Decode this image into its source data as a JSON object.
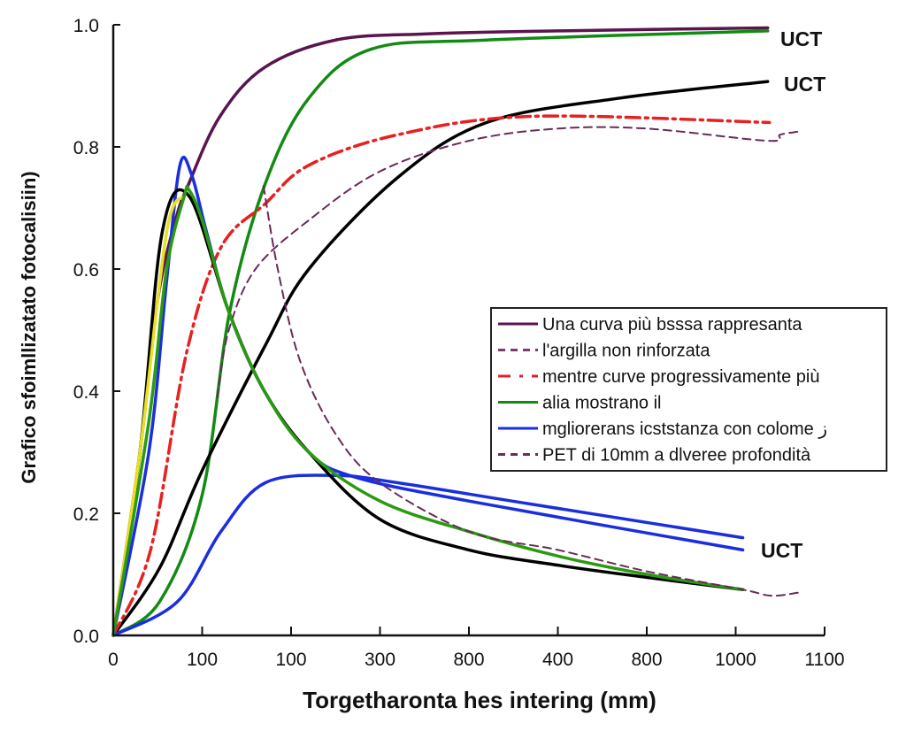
{
  "chart_data": {
    "type": "line",
    "title": "",
    "xlabel": "Torgetharonta hes intering (mm)",
    "ylabel": "Grafico sfoimllizatato fotocalisiin)",
    "x_tick_labels": [
      "0",
      "100",
      "100",
      "300",
      "800",
      "400",
      "800",
      "1000",
      "1100"
    ],
    "x_note_units": "tick index (0-8, evenly spaced ticks)",
    "y_ticks": [
      "0.0",
      "0.2",
      "0.4",
      "0.6",
      "0.8",
      "1.0"
    ],
    "ylim": [
      0,
      1.0
    ],
    "xlim": [
      0,
      8
    ],
    "grid": false,
    "legend_placement": "center-right",
    "legend": [
      {
        "label": "Una curva più bsssa rappresanta",
        "color": "#5a1450",
        "style": "solid"
      },
      {
        "label": "l'argilla non rinforzata",
        "color": "#7a3a6a",
        "style": "dashed"
      },
      {
        "label": "mentre curve progressivamente più",
        "color": "#e0202a",
        "style": "dashdot"
      },
      {
        "label": "alia mostrano il",
        "color": "#138a13",
        "style": "solid"
      },
      {
        "label": "mgliorerans icststanza con colome ز",
        "color": "#1a2ee0",
        "style": "solid"
      },
      {
        "label": "PET di 10mm a dlveree profondità",
        "color": "#6a2a5a",
        "style": "dashed"
      }
    ],
    "end_labels": [
      "UCT",
      "UCT",
      "UCT"
    ],
    "series": [
      {
        "id": "purple-rise",
        "color": "#5a1450",
        "style": "solid",
        "points": [
          [
            0,
            0
          ],
          [
            0.3,
            0.3
          ],
          [
            0.5,
            0.55
          ],
          [
            0.7,
            0.68
          ],
          [
            0.85,
            0.74
          ],
          [
            1.2,
            0.85
          ],
          [
            1.7,
            0.93
          ],
          [
            2.5,
            0.975
          ],
          [
            3.5,
            0.985
          ],
          [
            5,
            0.99
          ],
          [
            7.36,
            0.995
          ]
        ]
      },
      {
        "id": "green-rise",
        "color": "#138a13",
        "style": "solid",
        "points": [
          [
            0,
            0
          ],
          [
            0.52,
            0.055
          ],
          [
            1.0,
            0.23
          ],
          [
            1.31,
            0.53
          ],
          [
            1.71,
            0.74
          ],
          [
            2.2,
            0.88
          ],
          [
            2.9,
            0.96
          ],
          [
            4.2,
            0.975
          ],
          [
            7.36,
            0.99
          ]
        ]
      },
      {
        "id": "black-rise",
        "color": "#000000",
        "style": "solid",
        "points": [
          [
            0,
            0
          ],
          [
            0.52,
            0.11
          ],
          [
            1.0,
            0.27
          ],
          [
            1.71,
            0.475
          ],
          [
            2.2,
            0.6
          ],
          [
            3.2,
            0.75
          ],
          [
            4.2,
            0.84
          ],
          [
            5.7,
            0.88
          ],
          [
            7.36,
            0.907
          ]
        ]
      },
      {
        "id": "red-dashdot",
        "color": "#e82020",
        "style": "dashdot",
        "points": [
          [
            0,
            0
          ],
          [
            0.42,
            0.14
          ],
          [
            0.82,
            0.46
          ],
          [
            1.21,
            0.635
          ],
          [
            1.71,
            0.707
          ],
          [
            2.2,
            0.77
          ],
          [
            3.2,
            0.82
          ],
          [
            4.7,
            0.85
          ],
          [
            7.38,
            0.84
          ]
        ]
      },
      {
        "id": "purple-dashed-rise",
        "color": "#6a2a5a",
        "style": "dashed",
        "points": [
          [
            1.17,
            0.39
          ],
          [
            1.3,
            0.5
          ],
          [
            1.6,
            0.6
          ],
          [
            2.2,
            0.68
          ],
          [
            3,
            0.76
          ],
          [
            4,
            0.81
          ],
          [
            5,
            0.83
          ],
          [
            6,
            0.83
          ],
          [
            7.36,
            0.81
          ],
          [
            7.5,
            0.82
          ],
          [
            7.7,
            0.825
          ]
        ]
      },
      {
        "id": "blue-peak",
        "color": "#1a2ee0",
        "style": "solid",
        "points": [
          [
            0,
            0
          ],
          [
            0.4,
            0.3
          ],
          [
            0.6,
            0.58
          ],
          [
            0.75,
            0.77
          ],
          [
            0.88,
            0.755
          ],
          [
            1.05,
            0.66
          ],
          [
            1.3,
            0.53
          ],
          [
            1.7,
            0.4
          ],
          [
            2.2,
            0.3
          ],
          [
            2.7,
            0.26
          ],
          [
            4,
            0.22
          ],
          [
            7.08,
            0.14
          ]
        ]
      },
      {
        "id": "blue-low",
        "color": "#1a2ee0",
        "style": "solid",
        "points": [
          [
            0,
            0
          ],
          [
            0.72,
            0.055
          ],
          [
            1.21,
            0.17
          ],
          [
            1.71,
            0.25
          ],
          [
            2.5,
            0.262
          ],
          [
            3.2,
            0.25
          ],
          [
            4.7,
            0.215
          ],
          [
            7.08,
            0.16
          ]
        ]
      },
      {
        "id": "black-peak",
        "color": "#000000",
        "style": "solid",
        "points": [
          [
            0,
            0
          ],
          [
            0.3,
            0.3
          ],
          [
            0.55,
            0.66
          ],
          [
            0.85,
            0.72
          ],
          [
            1.3,
            0.53
          ],
          [
            1.7,
            0.4
          ],
          [
            2.2,
            0.3
          ],
          [
            3,
            0.19
          ],
          [
            4,
            0.14
          ],
          [
            5,
            0.115
          ],
          [
            6,
            0.095
          ],
          [
            7.08,
            0.075
          ]
        ]
      },
      {
        "id": "yellow-peak",
        "color": "#e8e020",
        "style": "solid",
        "points": [
          [
            0,
            0
          ],
          [
            0.3,
            0.3
          ],
          [
            0.6,
            0.66
          ],
          [
            0.8,
            0.72
          ]
        ]
      },
      {
        "id": "green-peak",
        "color": "#2a9a10",
        "style": "solid",
        "points": [
          [
            0,
            0
          ],
          [
            0.4,
            0.35
          ],
          [
            0.6,
            0.6
          ],
          [
            0.8,
            0.72
          ],
          [
            0.85,
            0.73
          ],
          [
            1.0,
            0.68
          ],
          [
            1.3,
            0.53
          ],
          [
            1.7,
            0.4
          ],
          [
            2.2,
            0.3
          ],
          [
            3,
            0.22
          ],
          [
            4,
            0.17
          ],
          [
            5,
            0.13
          ],
          [
            6,
            0.1
          ],
          [
            7.08,
            0.075
          ]
        ]
      },
      {
        "id": "purple-dashed-decline",
        "color": "#6a2a5a",
        "style": "dashed",
        "points": [
          [
            1.69,
            0.736
          ],
          [
            1.85,
            0.6
          ],
          [
            2.1,
            0.45
          ],
          [
            2.5,
            0.33
          ],
          [
            3,
            0.25
          ],
          [
            4,
            0.17
          ],
          [
            5,
            0.14
          ],
          [
            6,
            0.105
          ],
          [
            7.08,
            0.075
          ],
          [
            7.4,
            0.065
          ],
          [
            7.7,
            0.07
          ]
        ]
      }
    ]
  }
}
